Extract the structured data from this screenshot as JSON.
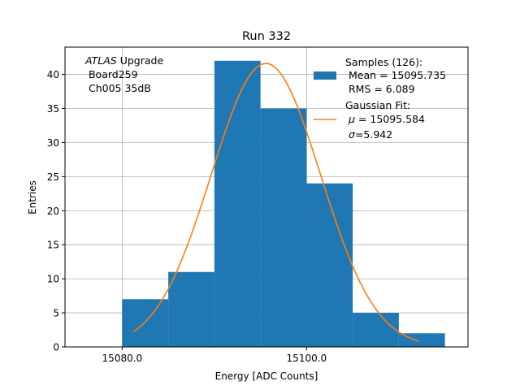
{
  "chart_data": {
    "type": "bar",
    "title": "Run 332",
    "xlabel": "Energy [ADC Counts]",
    "ylabel": "Entries",
    "xlim": [
      15073.8,
      15117.5
    ],
    "ylim": [
      0,
      44
    ],
    "grid": true,
    "x_ticks": [
      15080,
      15100
    ],
    "x_tick_labels": [
      "15080.0",
      "15100.0"
    ],
    "y_ticks": [
      0,
      5,
      10,
      15,
      20,
      25,
      30,
      35,
      40
    ],
    "y_tick_labels": [
      "0",
      "5",
      "10",
      "15",
      "20",
      "25",
      "30",
      "35",
      "40"
    ],
    "bins": [
      {
        "left": 15080,
        "right": 15085,
        "count": 7
      },
      {
        "left": 15085,
        "right": 15090,
        "count": 11
      },
      {
        "left": 15090,
        "right": 15095,
        "count": 42
      },
      {
        "left": 15095,
        "right": 15100,
        "count": 35
      },
      {
        "left": 15100,
        "right": 15105,
        "count": 24
      },
      {
        "left": 15105,
        "right": 15110,
        "count": 5
      },
      {
        "left": 15110,
        "right": 15115,
        "count": 2
      }
    ],
    "fit": {
      "name": "Gaussian Fit",
      "mu": 15095.584,
      "sigma": 5.942,
      "amplitude": 41.6,
      "x_range": [
        15081.2,
        15112.2
      ]
    },
    "annotation": {
      "italic": "ATLAS",
      "rest": " Upgrade",
      "line2": " Board259",
      "line3": " Ch005 35dB"
    },
    "legend": {
      "position": "top-right",
      "samples_line1": "Samples (126):",
      "samples_line2": " Mean = 15095.735",
      "samples_line3": " RMS = 6.089",
      "fit_line1": "Gaussian Fit:",
      "fit_line2_value": " = 15095.584",
      "fit_line3_value": "=5.942"
    },
    "colors": {
      "bar": "#1f77b4",
      "fit": "#ff7f0e",
      "grid": "#b0b0b0",
      "axis": "#000000"
    }
  }
}
